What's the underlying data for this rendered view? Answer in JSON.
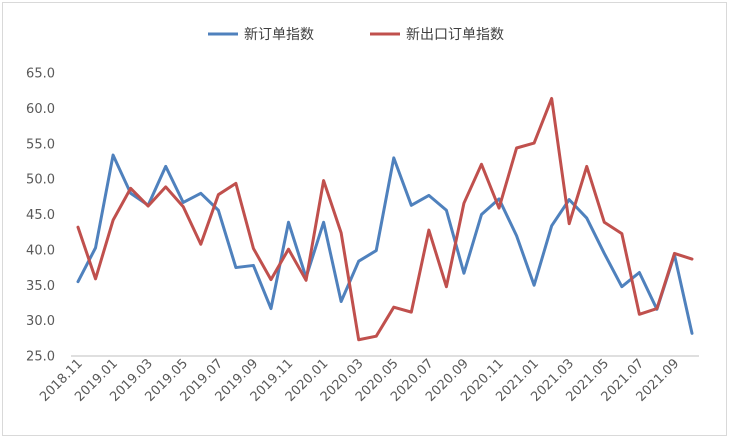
{
  "chart_data": {
    "type": "line",
    "title": "",
    "xlabel": "",
    "ylabel": "",
    "ylim": [
      25.0,
      65.0
    ],
    "y_ticks": [
      "25.0",
      "30.0",
      "35.0",
      "40.0",
      "45.0",
      "50.0",
      "55.0",
      "60.0",
      "65.0"
    ],
    "grid": false,
    "legend_position": "top",
    "categories": [
      "2018.11",
      "2018.12",
      "2019.01",
      "2019.02",
      "2019.03",
      "2019.04",
      "2019.05",
      "2019.06",
      "2019.07",
      "2019.08",
      "2019.09",
      "2019.10",
      "2019.11",
      "2019.12",
      "2020.01",
      "2020.02",
      "2020.03",
      "2020.04",
      "2020.05",
      "2020.06",
      "2020.07",
      "2020.08",
      "2020.09",
      "2020.10",
      "2020.11",
      "2020.12",
      "2021.01",
      "2021.02",
      "2021.03",
      "2021.04",
      "2021.05",
      "2021.06",
      "2021.07",
      "2021.08",
      "2021.09",
      "2021.10"
    ],
    "x_tick_labels": [
      "2018.11",
      "2019.01",
      "2019.03",
      "2019.05",
      "2019.07",
      "2019.09",
      "2019.11",
      "2020.01",
      "2020.03",
      "2020.05",
      "2020.07",
      "2020.09",
      "2020.11",
      "2021.01",
      "2021.03",
      "2021.05",
      "2021.07",
      "2021.09"
    ],
    "series": [
      {
        "name": "新订单指数",
        "color": "#4f81bd",
        "values": [
          35.5,
          40.3,
          53.4,
          48.0,
          46.3,
          51.8,
          46.7,
          48.0,
          45.6,
          37.5,
          37.8,
          31.7,
          43.9,
          36.1,
          43.9,
          32.7,
          38.4,
          39.9,
          53.0,
          46.3,
          47.7,
          45.6,
          36.7,
          45.0,
          47.2,
          42.0,
          35.0,
          43.4,
          47.1,
          44.5,
          39.5,
          34.8,
          36.8,
          31.6,
          39.3,
          28.2
        ]
      },
      {
        "name": "新出口订单指数",
        "color": "#c0504d",
        "values": [
          43.2,
          35.9,
          44.2,
          48.7,
          46.2,
          48.9,
          46.1,
          40.8,
          47.8,
          49.4,
          40.2,
          35.8,
          40.1,
          35.7,
          49.8,
          42.4,
          27.3,
          27.8,
          31.9,
          31.2,
          42.8,
          34.8,
          46.6,
          52.1,
          45.9,
          54.4,
          55.1,
          61.4,
          43.7,
          51.8,
          43.9,
          42.3,
          30.9,
          31.7,
          39.5,
          38.7
        ]
      }
    ]
  }
}
